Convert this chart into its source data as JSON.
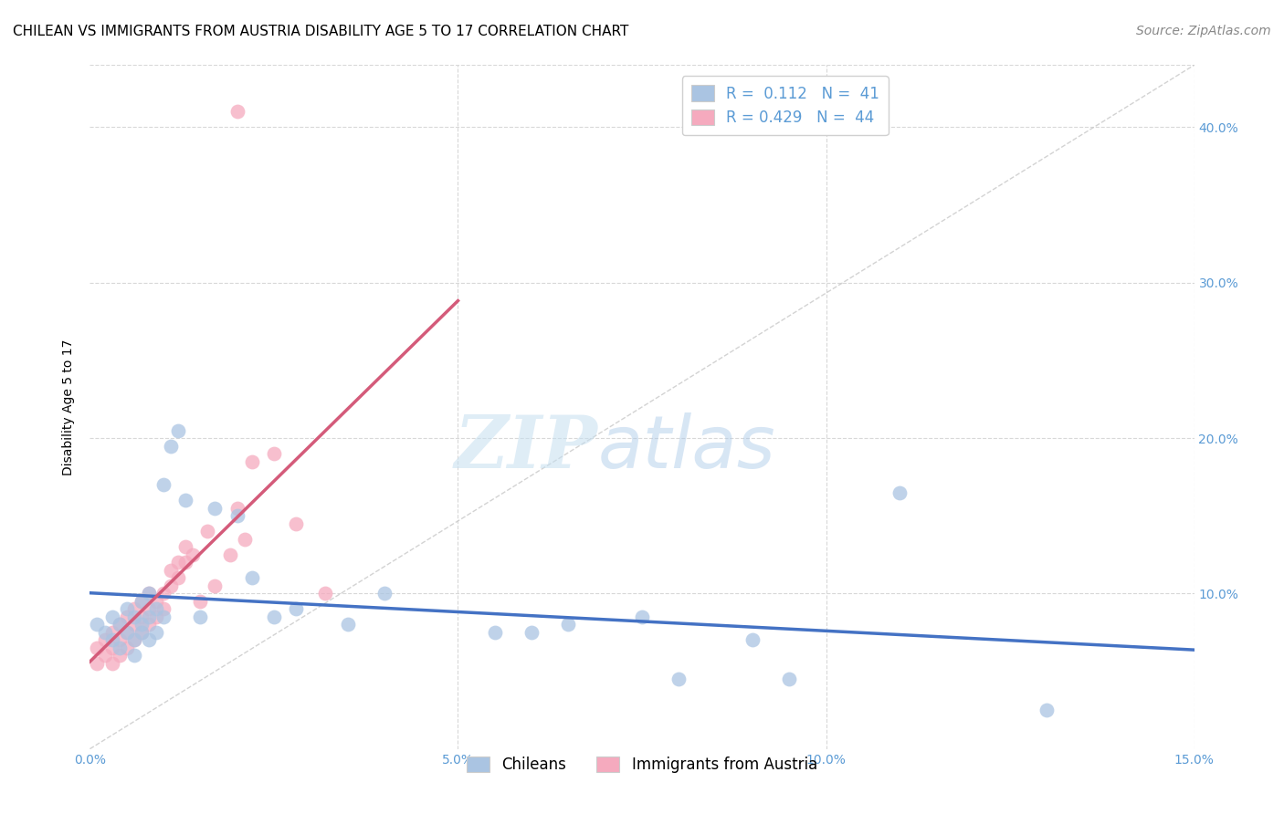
{
  "title": "CHILEAN VS IMMIGRANTS FROM AUSTRIA DISABILITY AGE 5 TO 17 CORRELATION CHART",
  "source": "Source: ZipAtlas.com",
  "ylabel": "Disability Age 5 to 17",
  "xlim": [
    0,
    0.15
  ],
  "ylim": [
    0,
    0.44
  ],
  "blue_R": 0.112,
  "blue_N": 41,
  "pink_R": 0.429,
  "pink_N": 44,
  "blue_color": "#aac4e2",
  "pink_color": "#f5aabe",
  "blue_line_color": "#4472c4",
  "pink_line_color": "#d45b7a",
  "diag_line_color": "#c8c8c8",
  "legend_label_blue": "Chileans",
  "legend_label_pink": "Immigrants from Austria",
  "watermark_zip": "ZIP",
  "watermark_atlas": "atlas",
  "blue_x": [
    0.001,
    0.002,
    0.003,
    0.003,
    0.004,
    0.004,
    0.005,
    0.005,
    0.006,
    0.006,
    0.006,
    0.007,
    0.007,
    0.007,
    0.008,
    0.008,
    0.008,
    0.009,
    0.009,
    0.01,
    0.01,
    0.011,
    0.012,
    0.013,
    0.015,
    0.017,
    0.02,
    0.022,
    0.025,
    0.028,
    0.035,
    0.04,
    0.055,
    0.06,
    0.065,
    0.075,
    0.08,
    0.09,
    0.095,
    0.11,
    0.13
  ],
  "blue_y": [
    0.08,
    0.075,
    0.07,
    0.085,
    0.065,
    0.08,
    0.075,
    0.09,
    0.07,
    0.085,
    0.06,
    0.095,
    0.08,
    0.075,
    0.1,
    0.085,
    0.07,
    0.09,
    0.075,
    0.085,
    0.17,
    0.195,
    0.205,
    0.16,
    0.085,
    0.155,
    0.15,
    0.11,
    0.085,
    0.09,
    0.08,
    0.1,
    0.075,
    0.075,
    0.08,
    0.085,
    0.045,
    0.07,
    0.045,
    0.165,
    0.025
  ],
  "pink_x": [
    0.001,
    0.001,
    0.002,
    0.002,
    0.003,
    0.003,
    0.003,
    0.004,
    0.004,
    0.004,
    0.005,
    0.005,
    0.005,
    0.006,
    0.006,
    0.006,
    0.007,
    0.007,
    0.007,
    0.008,
    0.008,
    0.008,
    0.009,
    0.009,
    0.01,
    0.01,
    0.011,
    0.011,
    0.012,
    0.012,
    0.013,
    0.013,
    0.014,
    0.015,
    0.016,
    0.017,
    0.019,
    0.02,
    0.021,
    0.022,
    0.025,
    0.028,
    0.032,
    0.02
  ],
  "pink_y": [
    0.055,
    0.065,
    0.06,
    0.07,
    0.055,
    0.065,
    0.075,
    0.06,
    0.07,
    0.08,
    0.065,
    0.075,
    0.085,
    0.07,
    0.08,
    0.09,
    0.075,
    0.085,
    0.095,
    0.08,
    0.09,
    0.1,
    0.085,
    0.095,
    0.1,
    0.09,
    0.105,
    0.115,
    0.11,
    0.12,
    0.12,
    0.13,
    0.125,
    0.095,
    0.14,
    0.105,
    0.125,
    0.155,
    0.135,
    0.185,
    0.19,
    0.145,
    0.1,
    0.41
  ],
  "title_fontsize": 11,
  "axis_fontsize": 10,
  "tick_fontsize": 10,
  "legend_fontsize": 12,
  "source_fontsize": 10
}
